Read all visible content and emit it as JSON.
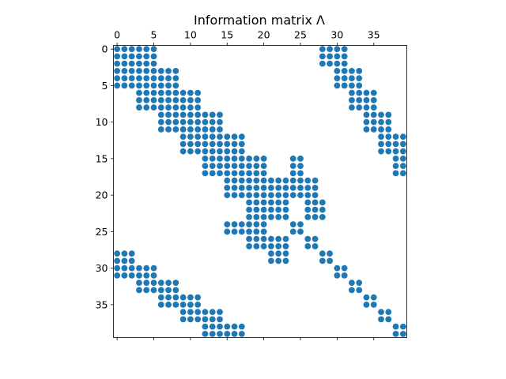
{
  "chart_data": {
    "type": "scatter",
    "title": "Information matrix Λ",
    "xlabel": "",
    "ylabel": "",
    "xlim": [
      -0.5,
      39.5
    ],
    "ylim": [
      39.5,
      -0.5
    ],
    "x_ticks": [
      0,
      5,
      10,
      15,
      20,
      25,
      30,
      35
    ],
    "y_ticks": [
      0,
      5,
      10,
      15,
      20,
      25,
      30,
      35
    ],
    "x_axis_position": "top",
    "grid": false,
    "legend": "none",
    "marker_color": "#1f77b4",
    "description": "Sparsity pattern of the information matrix; each marker is a nonzero entry (column, row).",
    "points": [
      [
        0,
        0
      ],
      [
        1,
        0
      ],
      [
        2,
        0
      ],
      [
        3,
        0
      ],
      [
        4,
        0
      ],
      [
        5,
        0
      ],
      [
        28,
        0
      ],
      [
        29,
        0
      ],
      [
        30,
        0
      ],
      [
        31,
        0
      ],
      [
        0,
        1
      ],
      [
        1,
        1
      ],
      [
        2,
        1
      ],
      [
        3,
        1
      ],
      [
        4,
        1
      ],
      [
        5,
        1
      ],
      [
        28,
        1
      ],
      [
        29,
        1
      ],
      [
        30,
        1
      ],
      [
        31,
        1
      ],
      [
        0,
        2
      ],
      [
        1,
        2
      ],
      [
        2,
        2
      ],
      [
        3,
        2
      ],
      [
        4,
        2
      ],
      [
        5,
        2
      ],
      [
        28,
        2
      ],
      [
        29,
        2
      ],
      [
        30,
        2
      ],
      [
        31,
        2
      ],
      [
        0,
        3
      ],
      [
        1,
        3
      ],
      [
        2,
        3
      ],
      [
        3,
        3
      ],
      [
        4,
        3
      ],
      [
        5,
        3
      ],
      [
        6,
        3
      ],
      [
        7,
        3
      ],
      [
        8,
        3
      ],
      [
        30,
        3
      ],
      [
        31,
        3
      ],
      [
        32,
        3
      ],
      [
        33,
        3
      ],
      [
        0,
        4
      ],
      [
        1,
        4
      ],
      [
        2,
        4
      ],
      [
        3,
        4
      ],
      [
        4,
        4
      ],
      [
        5,
        4
      ],
      [
        6,
        4
      ],
      [
        7,
        4
      ],
      [
        8,
        4
      ],
      [
        30,
        4
      ],
      [
        31,
        4
      ],
      [
        32,
        4
      ],
      [
        33,
        4
      ],
      [
        0,
        5
      ],
      [
        1,
        5
      ],
      [
        2,
        5
      ],
      [
        3,
        5
      ],
      [
        4,
        5
      ],
      [
        5,
        5
      ],
      [
        6,
        5
      ],
      [
        7,
        5
      ],
      [
        8,
        5
      ],
      [
        30,
        5
      ],
      [
        31,
        5
      ],
      [
        32,
        5
      ],
      [
        33,
        5
      ],
      [
        3,
        6
      ],
      [
        4,
        6
      ],
      [
        5,
        6
      ],
      [
        6,
        6
      ],
      [
        7,
        6
      ],
      [
        8,
        6
      ],
      [
        9,
        6
      ],
      [
        10,
        6
      ],
      [
        11,
        6
      ],
      [
        32,
        6
      ],
      [
        33,
        6
      ],
      [
        34,
        6
      ],
      [
        35,
        6
      ],
      [
        3,
        7
      ],
      [
        4,
        7
      ],
      [
        5,
        7
      ],
      [
        6,
        7
      ],
      [
        7,
        7
      ],
      [
        8,
        7
      ],
      [
        9,
        7
      ],
      [
        10,
        7
      ],
      [
        11,
        7
      ],
      [
        32,
        7
      ],
      [
        33,
        7
      ],
      [
        34,
        7
      ],
      [
        35,
        7
      ],
      [
        3,
        8
      ],
      [
        4,
        8
      ],
      [
        5,
        8
      ],
      [
        6,
        8
      ],
      [
        7,
        8
      ],
      [
        8,
        8
      ],
      [
        9,
        8
      ],
      [
        10,
        8
      ],
      [
        11,
        8
      ],
      [
        32,
        8
      ],
      [
        33,
        8
      ],
      [
        34,
        8
      ],
      [
        35,
        8
      ],
      [
        6,
        9
      ],
      [
        7,
        9
      ],
      [
        8,
        9
      ],
      [
        9,
        9
      ],
      [
        10,
        9
      ],
      [
        11,
        9
      ],
      [
        12,
        9
      ],
      [
        13,
        9
      ],
      [
        14,
        9
      ],
      [
        34,
        9
      ],
      [
        35,
        9
      ],
      [
        36,
        9
      ],
      [
        37,
        9
      ],
      [
        6,
        10
      ],
      [
        7,
        10
      ],
      [
        8,
        10
      ],
      [
        9,
        10
      ],
      [
        10,
        10
      ],
      [
        11,
        10
      ],
      [
        12,
        10
      ],
      [
        13,
        10
      ],
      [
        14,
        10
      ],
      [
        34,
        10
      ],
      [
        35,
        10
      ],
      [
        36,
        10
      ],
      [
        37,
        10
      ],
      [
        6,
        11
      ],
      [
        7,
        11
      ],
      [
        8,
        11
      ],
      [
        9,
        11
      ],
      [
        10,
        11
      ],
      [
        11,
        11
      ],
      [
        12,
        11
      ],
      [
        13,
        11
      ],
      [
        14,
        11
      ],
      [
        34,
        11
      ],
      [
        35,
        11
      ],
      [
        36,
        11
      ],
      [
        37,
        11
      ],
      [
        9,
        12
      ],
      [
        10,
        12
      ],
      [
        11,
        12
      ],
      [
        12,
        12
      ],
      [
        13,
        12
      ],
      [
        14,
        12
      ],
      [
        15,
        12
      ],
      [
        16,
        12
      ],
      [
        17,
        12
      ],
      [
        36,
        12
      ],
      [
        37,
        12
      ],
      [
        38,
        12
      ],
      [
        39,
        12
      ],
      [
        9,
        13
      ],
      [
        10,
        13
      ],
      [
        11,
        13
      ],
      [
        12,
        13
      ],
      [
        13,
        13
      ],
      [
        14,
        13
      ],
      [
        15,
        13
      ],
      [
        16,
        13
      ],
      [
        17,
        13
      ],
      [
        36,
        13
      ],
      [
        37,
        13
      ],
      [
        38,
        13
      ],
      [
        39,
        13
      ],
      [
        9,
        14
      ],
      [
        10,
        14
      ],
      [
        11,
        14
      ],
      [
        12,
        14
      ],
      [
        13,
        14
      ],
      [
        14,
        14
      ],
      [
        15,
        14
      ],
      [
        16,
        14
      ],
      [
        17,
        14
      ],
      [
        36,
        14
      ],
      [
        37,
        14
      ],
      [
        38,
        14
      ],
      [
        39,
        14
      ],
      [
        12,
        15
      ],
      [
        13,
        15
      ],
      [
        14,
        15
      ],
      [
        15,
        15
      ],
      [
        16,
        15
      ],
      [
        17,
        15
      ],
      [
        18,
        15
      ],
      [
        19,
        15
      ],
      [
        20,
        15
      ],
      [
        24,
        15
      ],
      [
        25,
        15
      ],
      [
        38,
        15
      ],
      [
        39,
        15
      ],
      [
        12,
        16
      ],
      [
        13,
        16
      ],
      [
        14,
        16
      ],
      [
        15,
        16
      ],
      [
        16,
        16
      ],
      [
        17,
        16
      ],
      [
        18,
        16
      ],
      [
        19,
        16
      ],
      [
        20,
        16
      ],
      [
        24,
        16
      ],
      [
        25,
        16
      ],
      [
        38,
        16
      ],
      [
        39,
        16
      ],
      [
        12,
        17
      ],
      [
        13,
        17
      ],
      [
        14,
        17
      ],
      [
        15,
        17
      ],
      [
        16,
        17
      ],
      [
        17,
        17
      ],
      [
        18,
        17
      ],
      [
        19,
        17
      ],
      [
        20,
        17
      ],
      [
        24,
        17
      ],
      [
        25,
        17
      ],
      [
        38,
        17
      ],
      [
        39,
        17
      ],
      [
        15,
        18
      ],
      [
        16,
        18
      ],
      [
        17,
        18
      ],
      [
        18,
        18
      ],
      [
        19,
        18
      ],
      [
        20,
        18
      ],
      [
        21,
        18
      ],
      [
        22,
        18
      ],
      [
        23,
        18
      ],
      [
        24,
        18
      ],
      [
        25,
        18
      ],
      [
        26,
        18
      ],
      [
        27,
        18
      ],
      [
        15,
        19
      ],
      [
        16,
        19
      ],
      [
        17,
        19
      ],
      [
        18,
        19
      ],
      [
        19,
        19
      ],
      [
        20,
        19
      ],
      [
        21,
        19
      ],
      [
        22,
        19
      ],
      [
        23,
        19
      ],
      [
        24,
        19
      ],
      [
        25,
        19
      ],
      [
        26,
        19
      ],
      [
        27,
        19
      ],
      [
        15,
        20
      ],
      [
        16,
        20
      ],
      [
        17,
        20
      ],
      [
        18,
        20
      ],
      [
        19,
        20
      ],
      [
        20,
        20
      ],
      [
        21,
        20
      ],
      [
        22,
        20
      ],
      [
        23,
        20
      ],
      [
        24,
        20
      ],
      [
        25,
        20
      ],
      [
        26,
        20
      ],
      [
        27,
        20
      ],
      [
        18,
        21
      ],
      [
        19,
        21
      ],
      [
        20,
        21
      ],
      [
        21,
        21
      ],
      [
        22,
        21
      ],
      [
        23,
        21
      ],
      [
        26,
        21
      ],
      [
        27,
        21
      ],
      [
        28,
        21
      ],
      [
        18,
        22
      ],
      [
        19,
        22
      ],
      [
        20,
        22
      ],
      [
        21,
        22
      ],
      [
        22,
        22
      ],
      [
        23,
        22
      ],
      [
        26,
        22
      ],
      [
        27,
        22
      ],
      [
        28,
        22
      ],
      [
        18,
        23
      ],
      [
        19,
        23
      ],
      [
        20,
        23
      ],
      [
        21,
        23
      ],
      [
        22,
        23
      ],
      [
        23,
        23
      ],
      [
        26,
        23
      ],
      [
        27,
        23
      ],
      [
        28,
        23
      ],
      [
        15,
        24
      ],
      [
        16,
        24
      ],
      [
        17,
        24
      ],
      [
        18,
        24
      ],
      [
        19,
        24
      ],
      [
        20,
        24
      ],
      [
        24,
        24
      ],
      [
        25,
        24
      ],
      [
        15,
        25
      ],
      [
        16,
        25
      ],
      [
        17,
        25
      ],
      [
        18,
        25
      ],
      [
        19,
        25
      ],
      [
        20,
        25
      ],
      [
        24,
        25
      ],
      [
        25,
        25
      ],
      [
        18,
        26
      ],
      [
        19,
        26
      ],
      [
        20,
        26
      ],
      [
        21,
        26
      ],
      [
        22,
        26
      ],
      [
        23,
        26
      ],
      [
        26,
        26
      ],
      [
        27,
        26
      ],
      [
        18,
        27
      ],
      [
        19,
        27
      ],
      [
        20,
        27
      ],
      [
        21,
        27
      ],
      [
        22,
        27
      ],
      [
        23,
        27
      ],
      [
        26,
        27
      ],
      [
        27,
        27
      ],
      [
        0,
        28
      ],
      [
        1,
        28
      ],
      [
        2,
        28
      ],
      [
        21,
        28
      ],
      [
        22,
        28
      ],
      [
        23,
        28
      ],
      [
        28,
        28
      ],
      [
        29,
        28
      ],
      [
        0,
        29
      ],
      [
        1,
        29
      ],
      [
        2,
        29
      ],
      [
        21,
        29
      ],
      [
        22,
        29
      ],
      [
        23,
        29
      ],
      [
        28,
        29
      ],
      [
        29,
        29
      ],
      [
        0,
        30
      ],
      [
        1,
        30
      ],
      [
        2,
        30
      ],
      [
        3,
        30
      ],
      [
        4,
        30
      ],
      [
        5,
        30
      ],
      [
        30,
        30
      ],
      [
        31,
        30
      ],
      [
        0,
        31
      ],
      [
        1,
        31
      ],
      [
        2,
        31
      ],
      [
        3,
        31
      ],
      [
        4,
        31
      ],
      [
        5,
        31
      ],
      [
        30,
        31
      ],
      [
        31,
        31
      ],
      [
        3,
        32
      ],
      [
        4,
        32
      ],
      [
        5,
        32
      ],
      [
        6,
        32
      ],
      [
        7,
        32
      ],
      [
        8,
        32
      ],
      [
        32,
        32
      ],
      [
        33,
        32
      ],
      [
        3,
        33
      ],
      [
        4,
        33
      ],
      [
        5,
        33
      ],
      [
        6,
        33
      ],
      [
        7,
        33
      ],
      [
        8,
        33
      ],
      [
        32,
        33
      ],
      [
        33,
        33
      ],
      [
        6,
        34
      ],
      [
        7,
        34
      ],
      [
        8,
        34
      ],
      [
        9,
        34
      ],
      [
        10,
        34
      ],
      [
        11,
        34
      ],
      [
        34,
        34
      ],
      [
        35,
        34
      ],
      [
        6,
        35
      ],
      [
        7,
        35
      ],
      [
        8,
        35
      ],
      [
        9,
        35
      ],
      [
        10,
        35
      ],
      [
        11,
        35
      ],
      [
        34,
        35
      ],
      [
        35,
        35
      ],
      [
        9,
        36
      ],
      [
        10,
        36
      ],
      [
        11,
        36
      ],
      [
        12,
        36
      ],
      [
        13,
        36
      ],
      [
        14,
        36
      ],
      [
        36,
        36
      ],
      [
        37,
        36
      ],
      [
        9,
        37
      ],
      [
        10,
        37
      ],
      [
        11,
        37
      ],
      [
        12,
        37
      ],
      [
        13,
        37
      ],
      [
        14,
        37
      ],
      [
        36,
        37
      ],
      [
        37,
        37
      ],
      [
        12,
        38
      ],
      [
        13,
        38
      ],
      [
        14,
        38
      ],
      [
        15,
        38
      ],
      [
        16,
        38
      ],
      [
        17,
        38
      ],
      [
        38,
        38
      ],
      [
        39,
        38
      ],
      [
        12,
        39
      ],
      [
        13,
        39
      ],
      [
        14,
        39
      ],
      [
        15,
        39
      ],
      [
        16,
        39
      ],
      [
        17,
        39
      ],
      [
        38,
        39
      ],
      [
        39,
        39
      ]
    ]
  }
}
